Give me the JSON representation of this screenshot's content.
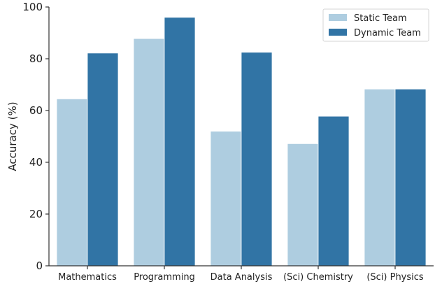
{
  "chart_data": {
    "type": "bar",
    "title": "",
    "xlabel": "",
    "ylabel": "Accuracy (%)",
    "ylim": [
      0,
      100
    ],
    "yticks": [
      0,
      20,
      40,
      60,
      80,
      100
    ],
    "categories": [
      "Mathematics",
      "Programming",
      "Data Analysis",
      "(Sci) Chemistry",
      "(Sci) Physics"
    ],
    "series": [
      {
        "name": "Static Team",
        "color": "#aecde0",
        "values": [
          64.5,
          87.8,
          52.0,
          47.2,
          68.3
        ]
      },
      {
        "name": "Dynamic Team",
        "color": "#3174a5",
        "values": [
          82.2,
          96.0,
          82.5,
          57.8,
          68.3
        ]
      }
    ],
    "legend": "top-right",
    "grid": false
  }
}
